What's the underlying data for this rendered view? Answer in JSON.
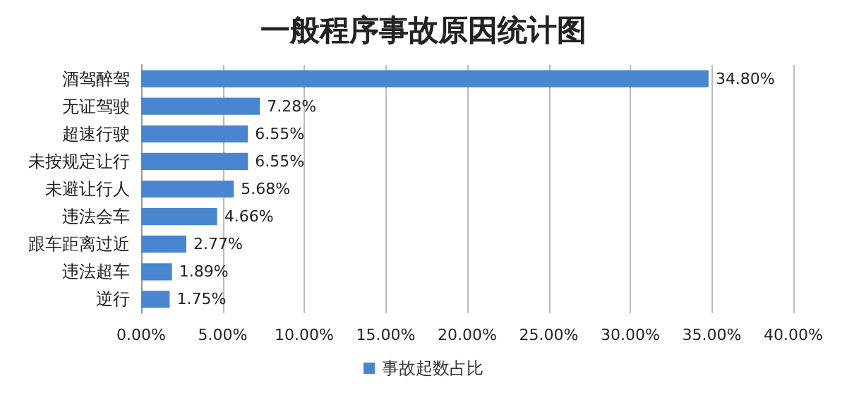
{
  "chart_data": {
    "type": "bar",
    "orientation": "horizontal",
    "title": "一般程序事故原因统计图",
    "categories": [
      "酒驾醉驾",
      "无证驾驶",
      "超速行驶",
      "未按规定让行",
      "未避让行人",
      "违法会车",
      "跟车距离过近",
      "违法超车",
      "逆行"
    ],
    "series": [
      {
        "name": "事故起数占比",
        "color": "#4a86d0",
        "values": [
          34.8,
          7.28,
          6.55,
          6.55,
          5.68,
          4.66,
          2.77,
          1.89,
          1.75
        ],
        "value_labels": [
          "34.80%",
          "7.28%",
          "6.55%",
          "6.55%",
          "5.68%",
          "4.66%",
          "2.77%",
          "1.89%",
          "1.75%"
        ]
      }
    ],
    "xlim": [
      0,
      40
    ],
    "xticks": [
      {
        "value": 0,
        "label": "0.00%"
      },
      {
        "value": 5,
        "label": "5.00%"
      },
      {
        "value": 10,
        "label": "10.00%"
      },
      {
        "value": 15,
        "label": "15.00%"
      },
      {
        "value": 20,
        "label": "20.00%"
      },
      {
        "value": 25,
        "label": "25.00%"
      },
      {
        "value": 30,
        "label": "30.00%"
      },
      {
        "value": 35,
        "label": "35.00%"
      },
      {
        "value": 40,
        "label": "40.00%"
      }
    ],
    "grid": "x",
    "legend": "bottom"
  }
}
